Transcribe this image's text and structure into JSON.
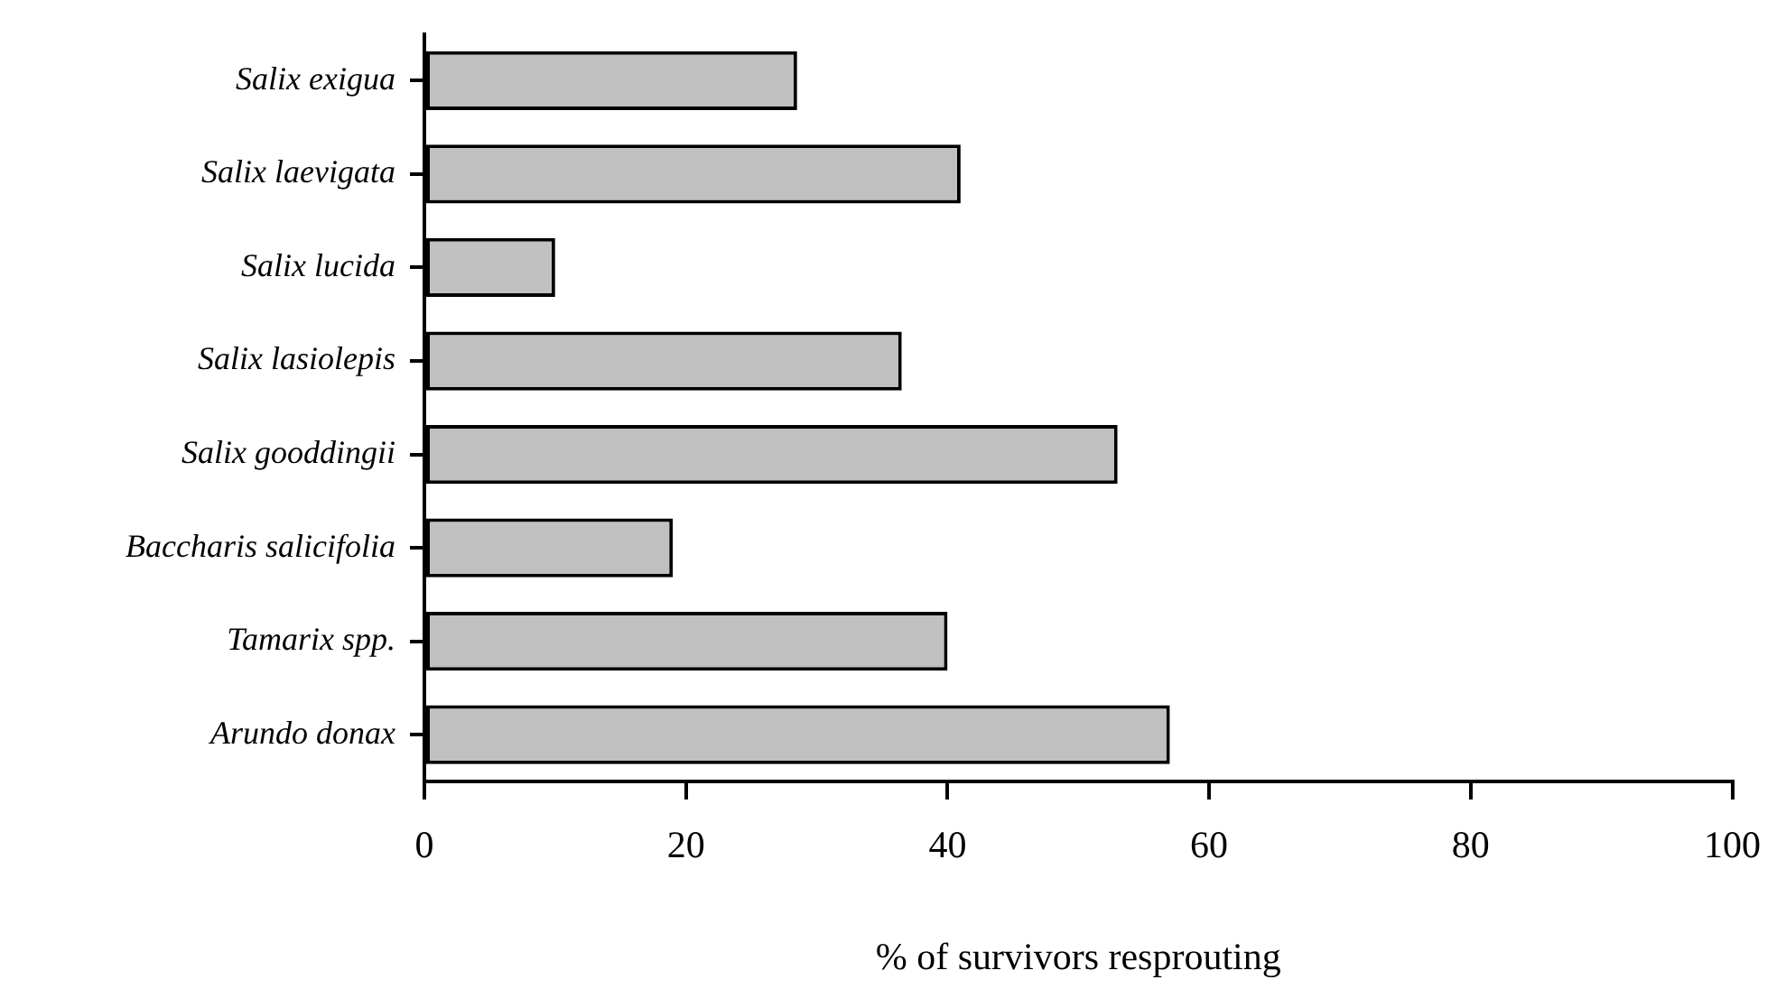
{
  "chart_data": {
    "type": "bar",
    "orientation": "horizontal",
    "categories": [
      "Salix exigua",
      "Salix laevigata",
      "Salix lucida",
      "Salix lasiolepis",
      "Salix gooddingii",
      "Baccharis salicifolia",
      "Tamarix spp.",
      "Arundo donax"
    ],
    "values": [
      28.5,
      41,
      10,
      36.5,
      53,
      19,
      40,
      57
    ],
    "color": "#c0c0c0",
    "xlabel": "% of survivors resprouting",
    "xlim": [
      0,
      100
    ],
    "xticks": [
      0,
      20,
      40,
      60,
      80,
      100
    ],
    "grid": false
  }
}
